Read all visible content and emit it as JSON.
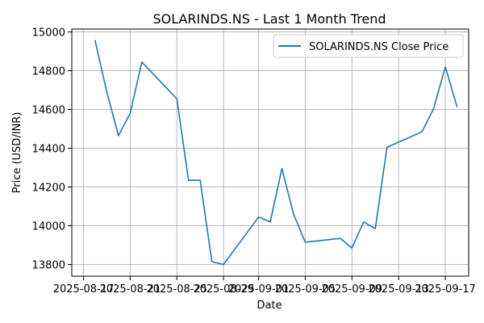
{
  "chart_data": {
    "type": "line",
    "title": "SOLARINDS.NS - Last 1 Month Trend",
    "xlabel": "Date",
    "ylabel": "Price (USD/INR)",
    "x": [
      "2025-08-18",
      "2025-08-19",
      "2025-08-20",
      "2025-08-21",
      "2025-08-22",
      "2025-08-25",
      "2025-08-26",
      "2025-08-27",
      "2025-08-28",
      "2025-08-29",
      "2025-09-01",
      "2025-09-02",
      "2025-09-03",
      "2025-09-04",
      "2025-09-05",
      "2025-09-08",
      "2025-09-09",
      "2025-09-10",
      "2025-09-11",
      "2025-09-12",
      "2025-09-15",
      "2025-09-16",
      "2025-09-17",
      "2025-09-18"
    ],
    "series": [
      {
        "name": "SOLARINDS.NS Close Price",
        "color": "#1f77b4",
        "values": [
          14955,
          14690,
          14465,
          14580,
          14845,
          14655,
          14235,
          14235,
          13815,
          13800,
          14045,
          14020,
          14295,
          14060,
          13915,
          13935,
          13885,
          14020,
          13985,
          14405,
          14485,
          14605,
          14820,
          14615
        ]
      }
    ],
    "xlim": [
      "2025-08-16",
      "2025-09-19"
    ],
    "ylim": [
      13740,
      15015
    ],
    "xticks": [
      "2025-08-17",
      "2025-08-21",
      "2025-08-25",
      "2025-08-29",
      "2025-09-01",
      "2025-09-05",
      "2025-09-09",
      "2025-09-13",
      "2025-09-17"
    ],
    "xtick_labels": [
      "2025-08-17",
      "2025-08-21",
      "2025-08-25",
      "2025-08-29",
      "2025-09-01",
      "2025-09-05",
      "2025-09-09",
      "2025-09-13",
      "2025-09-17"
    ],
    "yticks": [
      13800,
      14000,
      14200,
      14400,
      14600,
      14800,
      15000
    ],
    "ytick_labels": [
      "13800",
      "14000",
      "14200",
      "14400",
      "14600",
      "14800",
      "15000"
    ],
    "grid": true,
    "legend": "upper-right"
  }
}
